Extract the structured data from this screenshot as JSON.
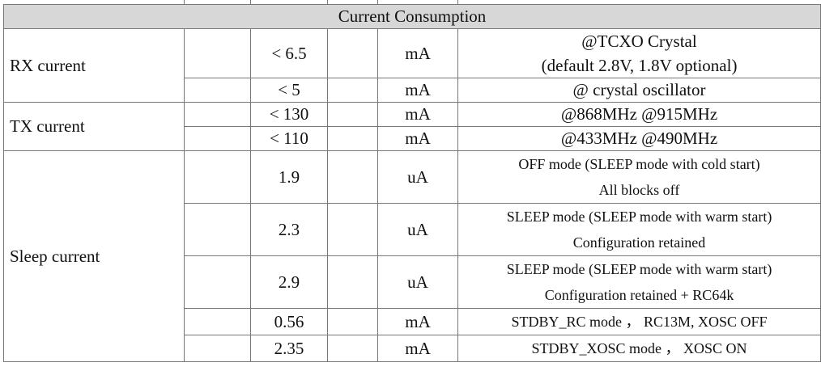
{
  "section_title": "Current Consumption",
  "rows": [
    {
      "parameter": "RX current",
      "value": "< 6.5",
      "unit": "mA",
      "condition_line1": "@TCXO Crystal",
      "condition_line2": "(default 2.8V, 1.8V optional)"
    },
    {
      "value": "< 5",
      "unit": "mA",
      "condition_line1": "@ crystal oscillator"
    },
    {
      "parameter": "TX current",
      "value": "< 130",
      "unit": "mA",
      "condition_line1": "@868MHz @915MHz"
    },
    {
      "value": "< 110",
      "unit": "mA",
      "condition_line1": "@433MHz @490MHz"
    },
    {
      "parameter": "Sleep current",
      "value": "1.9",
      "unit": "uA",
      "condition_line1": "OFF mode (SLEEP mode with cold start)",
      "condition_line2": "All blocks off"
    },
    {
      "value": "2.3",
      "unit": "uA",
      "condition_line1": "SLEEP mode (SLEEP mode with warm start)",
      "condition_line2": "Configuration retained"
    },
    {
      "value": "2.9",
      "unit": "uA",
      "condition_line1": "SLEEP mode (SLEEP mode with warm start)",
      "condition_line2": "Configuration retained + RC64k"
    },
    {
      "value": "0.56",
      "unit": "mA",
      "condition_line1": "STDBY_RC mode ，  RC13M, XOSC OFF"
    },
    {
      "value": "2.35",
      "unit": "mA",
      "condition_line1": "STDBY_XOSC mode ，  XOSC ON"
    }
  ]
}
